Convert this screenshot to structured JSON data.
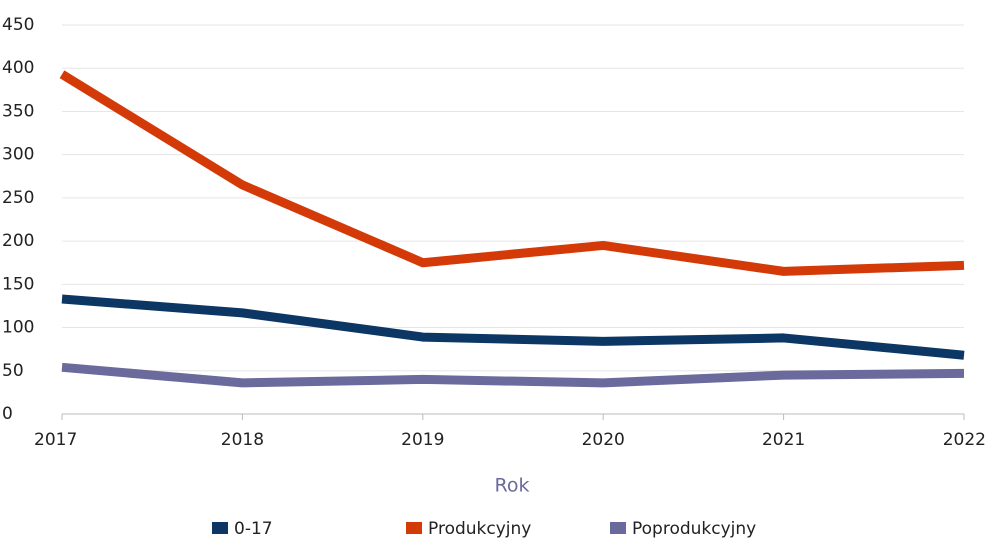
{
  "chart_data": {
    "type": "line",
    "x_label": "Rok",
    "x": [
      2017,
      2018,
      2019,
      2020,
      2021,
      2022
    ],
    "xlim": [
      2017,
      2022
    ],
    "xticks": [
      2017,
      2018,
      2019,
      2020,
      2021,
      2022
    ],
    "ylim": [
      0,
      450
    ],
    "yticks": [
      0,
      50,
      100,
      150,
      200,
      250,
      300,
      350,
      400,
      450
    ],
    "grid": true,
    "legend": "bottom",
    "series": [
      {
        "name": "0-17",
        "color": "#0c3663",
        "values": [
          133,
          117,
          89,
          84,
          88,
          68
        ]
      },
      {
        "name": "Produkcyjny",
        "color": "#d43a08",
        "values": [
          393,
          265,
          175,
          195,
          165,
          172
        ]
      },
      {
        "name": "Poprodukcyjny",
        "color": "#6a6a9c",
        "values": [
          54,
          36,
          40,
          36,
          45,
          47
        ]
      }
    ]
  }
}
